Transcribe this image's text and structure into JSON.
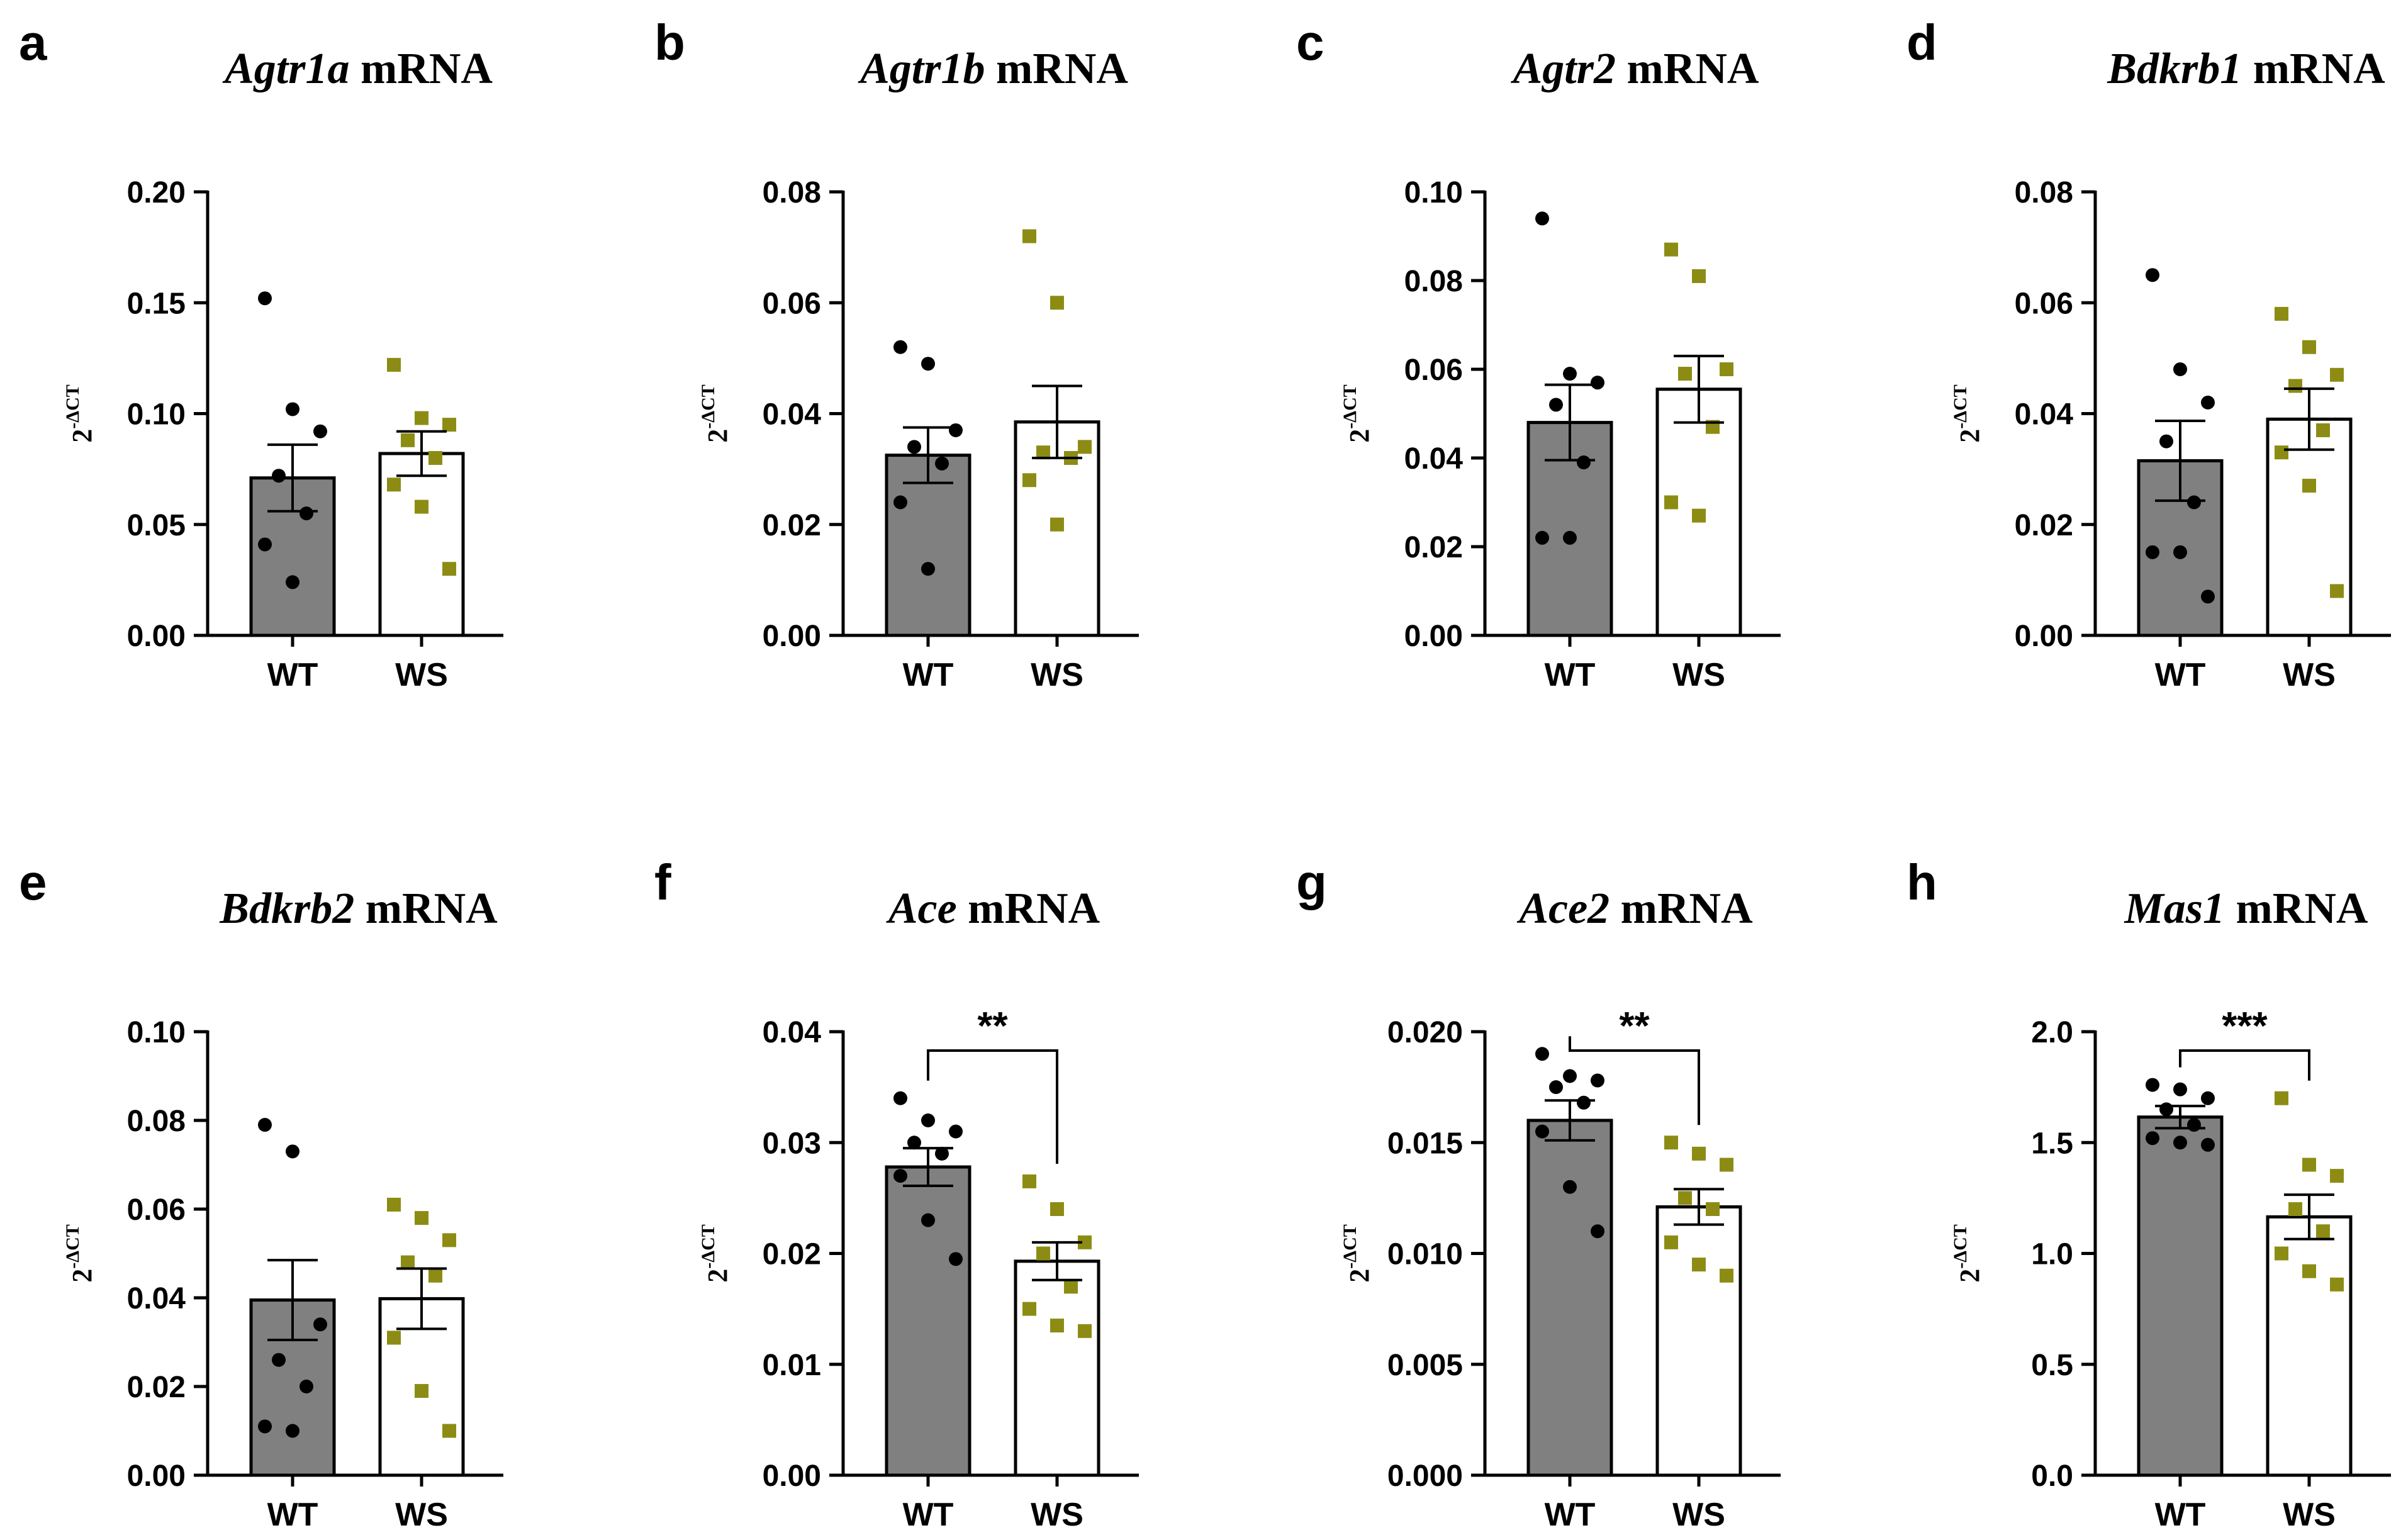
{
  "colors": {
    "wt_bar": "#808080",
    "ws_bar": "#ffffff",
    "wt_point": "#000000",
    "ws_point": "#8c8c14",
    "axis": "#000000"
  },
  "y_axis_label": {
    "base": "2",
    "superscript": "-ΔCT"
  },
  "chart_data": [
    {
      "type": "bar",
      "panel": "a",
      "title_gene": "Agtr1a",
      "title_rest": " mRNA",
      "categories": [
        "WT",
        "WS"
      ],
      "ylim": [
        0,
        0.2
      ],
      "ticks": [
        "0.00",
        "0.05",
        "0.10",
        "0.15",
        "0.20"
      ],
      "tick_values": [
        0,
        0.05,
        0.1,
        0.15,
        0.2
      ],
      "means": [
        0.071,
        0.082
      ],
      "sem": [
        0.015,
        0.01
      ],
      "points": [
        [
          0.152,
          0.102,
          0.092,
          0.072,
          0.055,
          0.041,
          0.024
        ],
        [
          0.122,
          0.098,
          0.095,
          0.088,
          0.08,
          0.068,
          0.058,
          0.03
        ]
      ],
      "significance": null
    },
    {
      "type": "bar",
      "panel": "b",
      "title_gene": "Agtr1b",
      "title_rest": " mRNA",
      "categories": [
        "WT",
        "WS"
      ],
      "ylim": [
        0,
        0.08
      ],
      "ticks": [
        "0.00",
        "0.02",
        "0.04",
        "0.06",
        "0.08"
      ],
      "tick_values": [
        0,
        0.02,
        0.04,
        0.06,
        0.08
      ],
      "means": [
        0.0325,
        0.0385
      ],
      "sem": [
        0.005,
        0.0065
      ],
      "points": [
        [
          0.052,
          0.049,
          0.037,
          0.034,
          0.031,
          0.024,
          0.012
        ],
        [
          0.072,
          0.06,
          0.034,
          0.033,
          0.032,
          0.028,
          0.02
        ]
      ],
      "significance": null
    },
    {
      "type": "bar",
      "panel": "c",
      "title_gene": "Agtr2",
      "title_rest": " mRNA",
      "categories": [
        "WT",
        "WS"
      ],
      "ylim": [
        0,
        0.1
      ],
      "ticks": [
        "0.00",
        "0.02",
        "0.04",
        "0.06",
        "0.08",
        "0.10"
      ],
      "tick_values": [
        0,
        0.02,
        0.04,
        0.06,
        0.08,
        0.1
      ],
      "means": [
        0.048,
        0.0555
      ],
      "sem": [
        0.0085,
        0.0075
      ],
      "points": [
        [
          0.094,
          0.059,
          0.057,
          0.052,
          0.039,
          0.022,
          0.022
        ],
        [
          0.087,
          0.081,
          0.06,
          0.059,
          0.047,
          0.03,
          0.027
        ]
      ],
      "significance": null
    },
    {
      "type": "bar",
      "panel": "d",
      "title_gene": "Bdkrb1",
      "title_rest": " mRNA",
      "categories": [
        "WT",
        "WS"
      ],
      "ylim": [
        0,
        0.08
      ],
      "ticks": [
        "0.00",
        "0.02",
        "0.04",
        "0.06",
        "0.08"
      ],
      "tick_values": [
        0,
        0.02,
        0.04,
        0.06,
        0.08
      ],
      "means": [
        0.0315,
        0.039
      ],
      "sem": [
        0.0072,
        0.0055
      ],
      "points": [
        [
          0.065,
          0.048,
          0.042,
          0.035,
          0.024,
          0.015,
          0.015,
          0.007
        ],
        [
          0.058,
          0.052,
          0.047,
          0.045,
          0.037,
          0.033,
          0.027,
          0.008
        ]
      ],
      "significance": null
    },
    {
      "type": "bar",
      "panel": "e",
      "title_gene": "Bdkrb2",
      "title_rest": " mRNA",
      "categories": [
        "WT",
        "WS"
      ],
      "ylim": [
        0,
        0.1
      ],
      "ticks": [
        "0.00",
        "0.02",
        "0.04",
        "0.06",
        "0.08",
        "0.10"
      ],
      "tick_values": [
        0,
        0.02,
        0.04,
        0.06,
        0.08,
        0.1
      ],
      "means": [
        0.0395,
        0.0398
      ],
      "sem": [
        0.009,
        0.0068
      ],
      "points": [
        [
          0.079,
          0.073,
          0.034,
          0.026,
          0.02,
          0.011,
          0.01
        ],
        [
          0.061,
          0.058,
          0.053,
          0.048,
          0.045,
          0.031,
          0.019,
          0.01
        ]
      ],
      "significance": null
    },
    {
      "type": "bar",
      "panel": "f",
      "title_gene": "Ace",
      "title_rest": " mRNA",
      "categories": [
        "WT",
        "WS"
      ],
      "ylim": [
        0,
        0.04
      ],
      "ticks": [
        "0.00",
        "0.01",
        "0.02",
        "0.03",
        "0.04"
      ],
      "tick_values": [
        0,
        0.01,
        0.02,
        0.03,
        0.04
      ],
      "means": [
        0.0278,
        0.0193
      ],
      "sem": [
        0.0017,
        0.0017
      ],
      "points": [
        [
          0.034,
          0.032,
          0.031,
          0.03,
          0.029,
          0.027,
          0.023,
          0.0195
        ],
        [
          0.0265,
          0.024,
          0.021,
          0.02,
          0.017,
          0.015,
          0.0135,
          0.013
        ]
      ],
      "significance": "**"
    },
    {
      "type": "bar",
      "panel": "g",
      "title_gene": "Ace2",
      "title_rest": " mRNA",
      "categories": [
        "WT",
        "WS"
      ],
      "ylim": [
        0,
        0.02
      ],
      "ticks": [
        "0.000",
        "0.005",
        "0.010",
        "0.015",
        "0.020"
      ],
      "tick_values": [
        0,
        0.005,
        0.01,
        0.015,
        0.02
      ],
      "means": [
        0.016,
        0.0121
      ],
      "sem": [
        0.0009,
        0.0008
      ],
      "points": [
        [
          0.019,
          0.018,
          0.0178,
          0.0175,
          0.0168,
          0.0155,
          0.013,
          0.011
        ],
        [
          0.015,
          0.0145,
          0.014,
          0.0125,
          0.012,
          0.0105,
          0.0095,
          0.009
        ]
      ],
      "significance": "**"
    },
    {
      "type": "bar",
      "panel": "h",
      "title_gene": "Mas1",
      "title_rest": " mRNA",
      "categories": [
        "WT",
        "WS"
      ],
      "ylim": [
        0,
        2.0
      ],
      "ticks": [
        "0.0",
        "0.5",
        "1.0",
        "1.5",
        "2.0"
      ],
      "tick_values": [
        0,
        0.5,
        1.0,
        1.5,
        2.0
      ],
      "means": [
        1.615,
        1.165
      ],
      "sem": [
        0.05,
        0.1
      ],
      "points": [
        [
          1.76,
          1.74,
          1.7,
          1.65,
          1.58,
          1.52,
          1.5,
          1.49
        ],
        [
          1.7,
          1.4,
          1.35,
          1.2,
          1.1,
          1.0,
          0.92,
          0.86
        ]
      ],
      "significance": "***"
    }
  ]
}
